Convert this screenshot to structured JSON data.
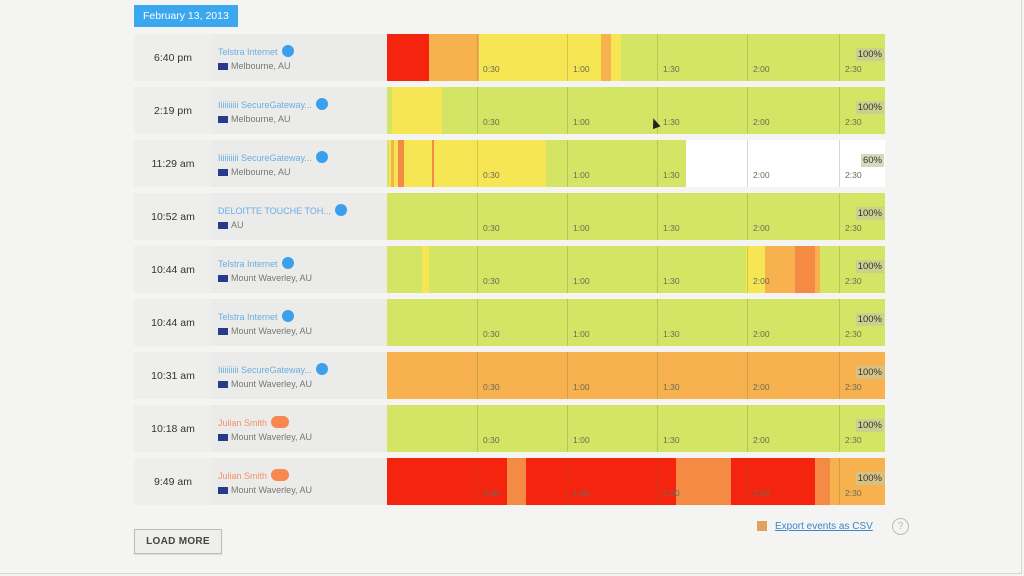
{
  "header": {
    "date": "February 13, 2013"
  },
  "ticks": [
    "0:30",
    "1:00",
    "1:30",
    "2:00",
    "2:30"
  ],
  "colors": {
    "green": "#d4e465",
    "yellow": "#f6e653",
    "orange": "#f7b24f",
    "dark_orange": "#f58a45",
    "red": "#f5240e",
    "white": "#ffffff"
  },
  "rows": [
    {
      "time": "6:40 pm",
      "name": "Telstra Internet",
      "name_color": "blue",
      "location": "Melbourne, AU",
      "percent": "100%",
      "segments": [
        [
          0,
          0.085,
          "red"
        ],
        [
          0.085,
          0.185,
          "orange"
        ],
        [
          0.185,
          0.43,
          "yellow"
        ],
        [
          0.43,
          0.45,
          "orange"
        ],
        [
          0.45,
          0.47,
          "yellow"
        ]
      ]
    },
    {
      "time": "2:19 pm",
      "name": "Iiiiiiiiii SecureGateway...",
      "name_color": "blue",
      "location": "Melbourne, AU",
      "percent": "100%",
      "segments": [
        [
          0.01,
          0.11,
          "yellow"
        ]
      ]
    },
    {
      "time": "11:29 am",
      "name": "Iiiiiiiiii SecureGateway...",
      "name_color": "blue",
      "location": "Melbourne, AU",
      "percent": "60%",
      "segments": [
        [
          0.005,
          0.32,
          "yellow"
        ],
        [
          0.008,
          0.015,
          "orange"
        ],
        [
          0.022,
          0.035,
          "dark_orange"
        ],
        [
          0.09,
          0.095,
          "dark_orange"
        ],
        [
          0.6,
          1.0,
          "white"
        ]
      ]
    },
    {
      "time": "10:52 am",
      "name": "DELOITTE TOUCHE TOH...",
      "name_color": "blue",
      "location": "AU",
      "percent": "100%",
      "segments": []
    },
    {
      "time": "10:44 am",
      "name": "Telstra Internet",
      "name_color": "blue",
      "location": "Mount Waverley, AU",
      "percent": "100%",
      "segments": [
        [
          0.07,
          0.085,
          "yellow"
        ],
        [
          0.72,
          0.76,
          "yellow"
        ],
        [
          0.76,
          0.82,
          "orange"
        ],
        [
          0.82,
          0.86,
          "dark_orange"
        ],
        [
          0.86,
          0.87,
          "orange"
        ]
      ]
    },
    {
      "time": "10:44 am",
      "name": "Telstra Internet",
      "name_color": "blue",
      "location": "Mount Waverley, AU",
      "percent": "100%",
      "segments": []
    },
    {
      "time": "10:31 am",
      "name": "Iiiiiiiiii SecureGateway...",
      "name_color": "blue",
      "location": "Mount Waverley, AU",
      "percent": "100%",
      "segments": [
        [
          0,
          1.0,
          "orange"
        ]
      ]
    },
    {
      "time": "10:18 am",
      "name": "Julian Smith",
      "name_color": "orange",
      "location": "Mount Waverley, AU",
      "percent": "100%",
      "segments": []
    },
    {
      "time": "9:49 am",
      "name": "Julian Smith",
      "name_color": "orange",
      "location": "Mount Waverley, AU",
      "percent": "100%",
      "segments": [
        [
          0,
          0.24,
          "red"
        ],
        [
          0.24,
          0.28,
          "dark_orange"
        ],
        [
          0.28,
          0.46,
          "red"
        ],
        [
          0.46,
          0.58,
          "red"
        ],
        [
          0.58,
          0.69,
          "dark_orange"
        ],
        [
          0.69,
          0.86,
          "red"
        ],
        [
          0.86,
          0.89,
          "dark_orange"
        ],
        [
          0.89,
          1.0,
          "orange"
        ]
      ]
    }
  ],
  "footer": {
    "load_more": "LOAD MORE",
    "export": "Export events as CSV",
    "help": "?"
  }
}
